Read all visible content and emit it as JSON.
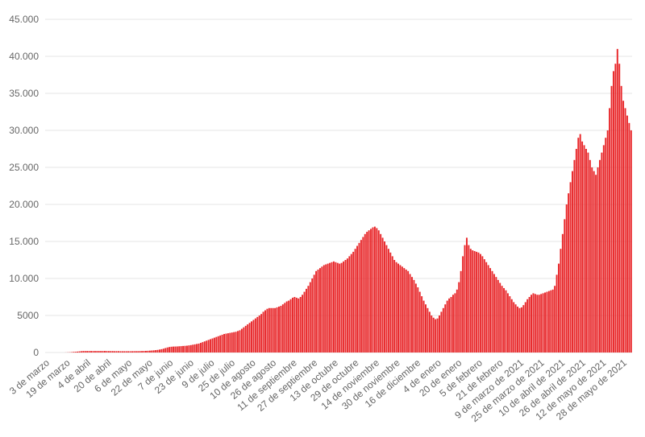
{
  "chart_data": {
    "type": "bar",
    "title": "",
    "xlabel": "",
    "ylabel": "",
    "ylim": [
      0,
      45000
    ],
    "grid": true,
    "bar_color": "#e8272a",
    "yticks": [
      {
        "value": 0,
        "label": "0"
      },
      {
        "value": 5000,
        "label": "5000"
      },
      {
        "value": 10000,
        "label": "10.000"
      },
      {
        "value": 15000,
        "label": "15.000"
      },
      {
        "value": 20000,
        "label": "20.000"
      },
      {
        "value": 25000,
        "label": "25.000"
      },
      {
        "value": 30000,
        "label": "30.000"
      },
      {
        "value": 35000,
        "label": "35.000"
      },
      {
        "value": 40000,
        "label": "40.000"
      },
      {
        "value": 45000,
        "label": "45.000"
      }
    ],
    "xtick_labels": [
      "3 de marzo",
      "19 de marzo",
      "4 de abril",
      "20 de abril",
      "6 de mayo",
      "22 de mayo",
      "7 de junio",
      "23 de junio",
      "9 de julio",
      "25 de julio",
      "10 de agosto",
      "26 de agosto",
      "11 de septiembre",
      "27 de septiembre",
      "13 de octubre",
      "29 de octubre",
      "14 de noviembre",
      "30 de noviembre",
      "16 de diciembre",
      "4 de enero",
      "20 de enero",
      "5 de febrero",
      "21 de febrero",
      "9 de marzo de 2021",
      "25 de marzo de 2021",
      "10 de abril de 2021",
      "26 de abril de 2021",
      "12 de mayo de 2021",
      "28 de mayo de 2021"
    ],
    "period": "3 de marzo — 28 de mayo de 2021",
    "series": [
      {
        "values": [
          0,
          0,
          0,
          0,
          0,
          0,
          0,
          0,
          0,
          0,
          10,
          20,
          30,
          50,
          80,
          100,
          120,
          150,
          180,
          200,
          200,
          200,
          200,
          200,
          200,
          200,
          200,
          200,
          200,
          200,
          210,
          200,
          190,
          190,
          190,
          180,
          180,
          180,
          170,
          170,
          170,
          170,
          170,
          170,
          170,
          180,
          180,
          180,
          190,
          200,
          210,
          220,
          230,
          250,
          270,
          290,
          320,
          350,
          400,
          450,
          520,
          600,
          680,
          740,
          780,
          800,
          810,
          820,
          840,
          860,
          880,
          900,
          920,
          960,
          1000,
          1050,
          1100,
          1150,
          1200,
          1300,
          1400,
          1500,
          1600,
          1700,
          1800,
          1900,
          2000,
          2100,
          2200,
          2300,
          2400,
          2500,
          2550,
          2600,
          2650,
          2700,
          2750,
          2800,
          2900,
          3000,
          3200,
          3400,
          3600,
          3800,
          4000,
          4200,
          4400,
          4600,
          4800,
          5000,
          5200,
          5500,
          5700,
          5900,
          6000,
          6000,
          6000,
          6000,
          6100,
          6200,
          6300,
          6500,
          6700,
          6900,
          7000,
          7200,
          7400,
          7500,
          7400,
          7300,
          7500,
          7800,
          8200,
          8600,
          9000,
          9500,
          10000,
          10500,
          11000,
          11200,
          11400,
          11600,
          11800,
          11900,
          12000,
          12100,
          12200,
          12300,
          12200,
          12100,
          12000,
          12100,
          12300,
          12500,
          12700,
          13000,
          13300,
          13600,
          14000,
          14400,
          14800,
          15200,
          15600,
          16000,
          16300,
          16500,
          16700,
          16900,
          17000,
          16800,
          16500,
          16000,
          15500,
          15000,
          14500,
          14000,
          13500,
          13000,
          12500,
          12200,
          12000,
          11800,
          11600,
          11400,
          11200,
          11000,
          10600,
          10200,
          9800,
          9300,
          8800,
          8200,
          7600,
          7000,
          6500,
          6000,
          5500,
          5000,
          4700,
          4500,
          4600,
          5000,
          5500,
          6000,
          6500,
          7000,
          7300,
          7500,
          7800,
          8000,
          8500,
          9500,
          11000,
          13000,
          14500,
          15500,
          14500,
          14000,
          13800,
          13700,
          13600,
          13500,
          13300,
          13000,
          12600,
          12200,
          11800,
          11400,
          11000,
          10600,
          10200,
          9800,
          9400,
          9000,
          8700,
          8400,
          8000,
          7600,
          7200,
          6800,
          6500,
          6200,
          6000,
          6100,
          6400,
          6800,
          7200,
          7500,
          7800,
          8000,
          7900,
          7800,
          7800,
          7900,
          8000,
          8100,
          8200,
          8300,
          8400,
          8500,
          9000,
          10500,
          12000,
          14000,
          16000,
          18000,
          20000,
          21500,
          23000,
          24500,
          26000,
          27500,
          29000,
          29500,
          28500,
          28000,
          27500,
          27000,
          26000,
          25000,
          24500,
          24000,
          25000,
          26000,
          27000,
          28000,
          29000,
          30000,
          33000,
          36000,
          38000,
          39000,
          41000,
          39000,
          36000,
          34000,
          33000,
          32000,
          31000,
          30000
        ]
      }
    ]
  }
}
